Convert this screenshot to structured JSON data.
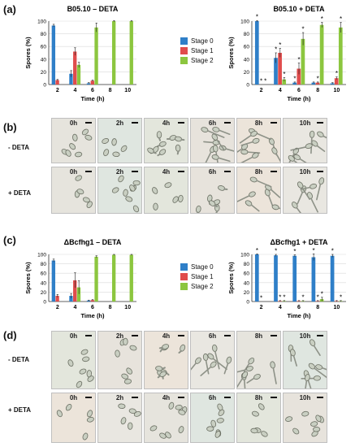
{
  "panels": {
    "a": "(a)",
    "b": "(b)",
    "c": "(c)",
    "d": "(d)"
  },
  "legend": {
    "items": [
      {
        "label": "Stage 0",
        "color": "#2f7fc8"
      },
      {
        "label": "Stage 1",
        "color": "#e04c4c"
      },
      {
        "label": "Stage 2",
        "color": "#8cc63f"
      }
    ]
  },
  "row_labels": {
    "minus": "- DETA",
    "plus": "+ DETA"
  },
  "time_labels": [
    "0h",
    "2h",
    "4h",
    "6h",
    "8h",
    "10h"
  ],
  "chart_data": [
    {
      "type": "bar",
      "title": "B05.10 – DETA",
      "xlabel": "Time (h)",
      "ylabel": "Spores (%)",
      "categories": [
        "2",
        "4",
        "6",
        "8",
        "10"
      ],
      "ylim": [
        0,
        100
      ],
      "yticks": [
        0,
        20,
        40,
        60,
        80,
        100
      ],
      "series": [
        {
          "name": "Stage 0",
          "values": [
            93,
            17,
            2,
            0,
            0
          ],
          "errors": [
            2,
            5,
            1,
            0,
            0
          ]
        },
        {
          "name": "Stage 1",
          "values": [
            7,
            52,
            6,
            0,
            0
          ],
          "errors": [
            1,
            6,
            1,
            0,
            0
          ]
        },
        {
          "name": "Stage 2",
          "values": [
            0,
            31,
            90,
            100,
            100
          ],
          "errors": [
            0,
            4,
            7,
            1,
            1
          ]
        }
      ],
      "asterisks": []
    },
    {
      "type": "bar",
      "title": "B05.10 + DETA",
      "xlabel": "Time (h)",
      "ylabel": "Spores (%)",
      "categories": [
        "2",
        "4",
        "6",
        "8",
        "10"
      ],
      "ylim": [
        0,
        100
      ],
      "yticks": [
        0,
        20,
        40,
        60,
        80,
        100
      ],
      "series": [
        {
          "name": "Stage 0",
          "values": [
            100,
            42,
            3,
            3,
            2
          ],
          "errors": [
            1,
            8,
            1,
            1,
            1
          ]
        },
        {
          "name": "Stage 1",
          "values": [
            0,
            50,
            25,
            3,
            10
          ],
          "errors": [
            0,
            7,
            9,
            1,
            2
          ]
        },
        {
          "name": "Stage 2",
          "values": [
            0,
            8,
            72,
            94,
            90
          ],
          "errors": [
            0,
            3,
            10,
            4,
            8
          ]
        }
      ],
      "asterisks": [
        [
          1,
          1,
          1
        ],
        [
          1,
          1,
          1
        ],
        [
          1,
          1,
          1
        ],
        [
          0,
          1,
          1
        ],
        [
          0,
          1,
          1
        ]
      ]
    },
    {
      "type": "bar",
      "title": "ΔBcfhg1 – DETA",
      "xlabel": "Time (h)",
      "ylabel": "Spores (%)",
      "categories": [
        "2",
        "4",
        "6",
        "8",
        "10"
      ],
      "ylim": [
        0,
        100
      ],
      "yticks": [
        0,
        20,
        40,
        60,
        80,
        100
      ],
      "series": [
        {
          "name": "Stage 0",
          "values": [
            87,
            12,
            2,
            0,
            0
          ],
          "errors": [
            3,
            5,
            1,
            0,
            0
          ]
        },
        {
          "name": "Stage 1",
          "values": [
            12,
            45,
            3,
            0,
            0
          ],
          "errors": [
            3,
            16,
            1,
            0,
            0
          ]
        },
        {
          "name": "Stage 2",
          "values": [
            0,
            30,
            95,
            99,
            99
          ],
          "errors": [
            0,
            14,
            2,
            1,
            1
          ]
        }
      ],
      "asterisks": []
    },
    {
      "type": "bar",
      "title": "ΔBcfhg1 + DETA",
      "xlabel": "Time (h)",
      "ylabel": "Spores (%)",
      "categories": [
        "2",
        "4",
        "6",
        "8",
        "10"
      ],
      "ylim": [
        0,
        100
      ],
      "yticks": [
        0,
        20,
        40,
        60,
        80,
        100
      ],
      "series": [
        {
          "name": "Stage 0",
          "values": [
            100,
            98,
            97,
            94,
            97
          ],
          "errors": [
            1,
            2,
            2,
            7,
            3
          ]
        },
        {
          "name": "Stage 1",
          "values": [
            0,
            1,
            1,
            1,
            1
          ],
          "errors": [
            0,
            1,
            1,
            1,
            1
          ]
        },
        {
          "name": "Stage 2",
          "values": [
            0,
            1,
            1,
            5,
            1
          ],
          "errors": [
            0,
            1,
            1,
            4,
            1
          ]
        }
      ],
      "asterisks": [
        [
          1,
          1,
          0
        ],
        [
          1,
          1,
          1
        ],
        [
          1,
          0,
          1
        ],
        [
          1,
          1,
          1
        ],
        [
          1,
          0,
          1
        ]
      ]
    }
  ]
}
